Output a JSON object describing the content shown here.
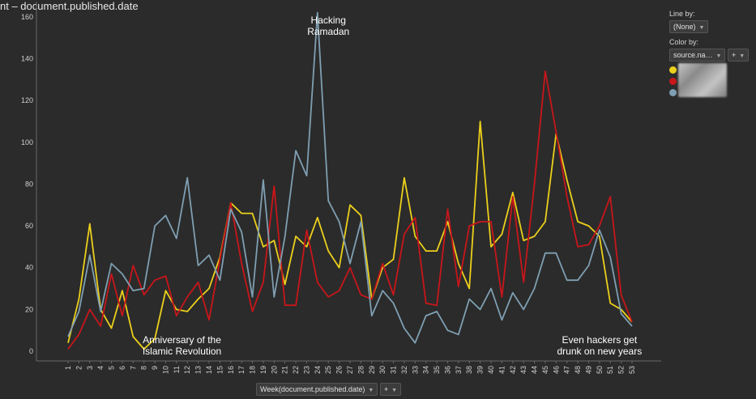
{
  "title": "nt – document.published.date",
  "panel": {
    "line_by_label": "Line by:",
    "line_by_value": "(None)",
    "color_by_label": "Color by:",
    "color_by_value": "source.na…",
    "plus_label": "+"
  },
  "x_axis_control": {
    "label": "Week(document.published.date)",
    "plus_label": "+"
  },
  "colors": {
    "background": "#2b2b2b",
    "yellow": "#ecd01c",
    "red": "#c8161a",
    "blue": "#7f9fb2"
  },
  "chart_data": {
    "type": "line",
    "xlabel": "Week(document.published.date)",
    "ylabel": "",
    "ylim": [
      0,
      165
    ],
    "yticks": [
      0,
      20,
      40,
      60,
      80,
      100,
      120,
      140,
      160
    ],
    "x": [
      1,
      2,
      3,
      4,
      5,
      6,
      7,
      8,
      9,
      10,
      11,
      12,
      13,
      14,
      15,
      16,
      17,
      18,
      19,
      20,
      21,
      22,
      23,
      24,
      25,
      26,
      27,
      28,
      29,
      30,
      31,
      32,
      33,
      34,
      35,
      36,
      37,
      38,
      39,
      40,
      41,
      42,
      43,
      44,
      45,
      46,
      47,
      48,
      49,
      50,
      51,
      52,
      53
    ],
    "grid": false,
    "legend": "right",
    "series": [
      {
        "color": "#ecd01c",
        "values": [
          4,
          25,
          61,
          20,
          11,
          29,
          7,
          1,
          6,
          29,
          20,
          19,
          25,
          30,
          45,
          71,
          66,
          66,
          50,
          53,
          32,
          55,
          50,
          64,
          48,
          40,
          70,
          65,
          25,
          40,
          44,
          83,
          55,
          48,
          48,
          62,
          42,
          30,
          110,
          50,
          56,
          76,
          53,
          55,
          62,
          104,
          82,
          62,
          60,
          55,
          23,
          20,
          14
        ]
      },
      {
        "color": "#c8161a",
        "values": [
          1,
          8,
          20,
          12,
          37,
          17,
          41,
          27,
          34,
          36,
          17,
          26,
          33,
          15,
          44,
          71,
          42,
          19,
          33,
          79,
          22,
          22,
          58,
          33,
          26,
          29,
          40,
          27,
          25,
          42,
          27,
          56,
          64,
          23,
          22,
          68,
          31,
          60,
          62,
          62,
          26,
          74,
          33,
          80,
          134,
          105,
          74,
          50,
          51,
          60,
          74,
          27,
          14
        ]
      },
      {
        "color": "#7f9fb2",
        "values": [
          7,
          19,
          46,
          19,
          42,
          37,
          29,
          30,
          60,
          65,
          54,
          83,
          41,
          46,
          34,
          68,
          57,
          26,
          82,
          26,
          55,
          96,
          84,
          162,
          72,
          62,
          42,
          62,
          17,
          29,
          23,
          11,
          4,
          17,
          19,
          10,
          8,
          25,
          20,
          30,
          15,
          28,
          20,
          30,
          47,
          47,
          34,
          34,
          41,
          58,
          45,
          18,
          12
        ]
      }
    ],
    "annotations": [
      {
        "text": [
          "Hacking",
          "Ramadan"
        ],
        "x": 25,
        "y": 165
      },
      {
        "text": [
          "Anniversary of the",
          "Islamic Revolution"
        ],
        "x": 11.5,
        "y": 4
      },
      {
        "text": [
          "Even hackers get",
          "drunk on new years"
        ],
        "x": 50,
        "y": 4
      }
    ]
  }
}
